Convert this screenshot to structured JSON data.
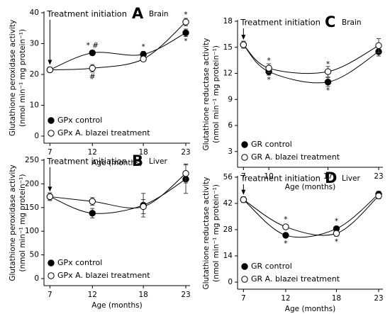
{
  "chart_data": [
    {
      "type": "line",
      "panel": "A",
      "title": "Brain",
      "annotation": "Treatment initiation",
      "ylabel": [
        "Glutathione peroxidase activity",
        "(nmol min⁻¹ mg protein⁻¹)"
      ],
      "xlabel": "Age (months)",
      "xlim": [
        6.3,
        23.5
      ],
      "xticks": [
        7,
        12,
        18,
        23
      ],
      "ylim": [
        0,
        40
      ],
      "yticks": [
        0,
        10,
        20,
        30,
        40
      ],
      "legend": "lower left",
      "series": [
        {
          "name": "GPx control",
          "marker": "filled",
          "color": "#000000",
          "x": [
            7,
            12,
            18,
            23
          ],
          "values": [
            21.5,
            27,
            26.5,
            33.5
          ],
          "errors": [
            0.8,
            0.8,
            1,
            1.2
          ]
        },
        {
          "name": "GPx A. blazei treatment",
          "marker": "open",
          "color": "#000000",
          "x": [
            7,
            12,
            18,
            23
          ],
          "values": [
            21.5,
            22,
            25,
            37
          ],
          "errors": [
            0.8,
            1.2,
            0.8,
            1.2
          ]
        }
      ],
      "annotations": [
        {
          "text": "* #",
          "x": 12,
          "y": 27,
          "position": "above"
        },
        {
          "text": "#",
          "x": 12,
          "y": 22,
          "position": "below"
        },
        {
          "text": "*",
          "x": 18,
          "y": 26.5,
          "position": "above"
        },
        {
          "text": "*",
          "x": 23,
          "y": 37,
          "position": "above"
        },
        {
          "text": "*",
          "x": 23,
          "y": 33.5,
          "position": "below"
        }
      ]
    },
    {
      "type": "line",
      "panel": "B",
      "title": "Liver",
      "annotation": "Treatment initiation",
      "ylabel": [
        "Glutathione peroxidase activity",
        "(nmol min⁻¹ mg protein⁻¹)"
      ],
      "xlabel": "Age (months)",
      "xlim": [
        6.3,
        23.5
      ],
      "xticks": [
        7,
        12,
        18,
        23
      ],
      "ylim": [
        0,
        250
      ],
      "yticks": [
        0,
        50,
        100,
        150,
        200,
        250
      ],
      "legend": "lower left",
      "series": [
        {
          "name": "GPx control",
          "marker": "filled",
          "color": "#000000",
          "x": [
            7,
            12,
            18,
            23
          ],
          "values": [
            173,
            138,
            155,
            210
          ],
          "errors": [
            8,
            10,
            25,
            30
          ]
        },
        {
          "name": "GPx A. blazei treatment",
          "marker": "open",
          "color": "#000000",
          "x": [
            7,
            12,
            18,
            23
          ],
          "values": [
            173,
            163,
            152,
            222
          ],
          "errors": [
            8,
            8,
            15,
            20
          ]
        }
      ],
      "annotations": []
    },
    {
      "type": "line",
      "panel": "C",
      "title": "Brain",
      "annotation": "Treatment initiation",
      "ylabel": [
        "Glutathione reductase activity",
        "(nmol min⁻¹ mg protein⁻¹)"
      ],
      "xlabel": "Age (months)",
      "xlim": [
        6.3,
        23.5
      ],
      "xticks": [
        7,
        10,
        17,
        23
      ],
      "ylim": [
        2,
        18
      ],
      "yticks": [
        3,
        6,
        9,
        12,
        15,
        18
      ],
      "legend": "lower left",
      "series": [
        {
          "name": "GR control",
          "marker": "filled",
          "color": "#000000",
          "x": [
            7,
            10,
            17,
            23
          ],
          "values": [
            15.3,
            12.2,
            11,
            14.5
          ],
          "errors": [
            0.4,
            0.4,
            0.5,
            0.5
          ]
        },
        {
          "name": "GR A. blazei treatment",
          "marker": "open",
          "color": "#000000",
          "x": [
            7,
            10,
            17,
            23
          ],
          "values": [
            15.3,
            12.6,
            12.2,
            15.2
          ],
          "errors": [
            0.4,
            0.5,
            0.6,
            0.8
          ]
        }
      ],
      "annotations": [
        {
          "text": "*",
          "x": 10,
          "y": 12.6,
          "position": "above"
        },
        {
          "text": "*",
          "x": 10,
          "y": 12.2,
          "position": "below"
        },
        {
          "text": "*",
          "x": 17,
          "y": 12.2,
          "position": "above"
        },
        {
          "text": "*",
          "x": 17,
          "y": 11,
          "position": "below"
        }
      ]
    },
    {
      "type": "line",
      "panel": "D",
      "title": "Liver",
      "annotation": "Treatment initiation",
      "ylabel": [
        "Glutathione  reductase activity",
        "(nmol min⁻¹ mg protein⁻¹)"
      ],
      "xlabel": "Age (months)",
      "xlim": [
        6.3,
        23.5
      ],
      "xticks": [
        7,
        12,
        18,
        23
      ],
      "ylim": [
        0,
        56
      ],
      "yticks": [
        0,
        14,
        28,
        42,
        56
      ],
      "legend": "lower left",
      "series": [
        {
          "name": "GR control",
          "marker": "filled",
          "color": "#000000",
          "x": [
            7,
            12,
            18,
            23
          ],
          "values": [
            44,
            25,
            28.5,
            47
          ],
          "errors": [
            1.5,
            1.2,
            1.2,
            1.5
          ]
        },
        {
          "name": "GR A. blazei treatment",
          "marker": "open",
          "color": "#000000",
          "x": [
            7,
            12,
            18,
            23
          ],
          "values": [
            44,
            29.5,
            26,
            46
          ],
          "errors": [
            1.5,
            1.2,
            1.5,
            1.5
          ]
        }
      ],
      "annotations": [
        {
          "text": "*",
          "x": 12,
          "y": 29.5,
          "position": "above"
        },
        {
          "text": "*",
          "x": 12,
          "y": 25,
          "position": "below"
        },
        {
          "text": "*",
          "x": 18,
          "y": 28.5,
          "position": "above"
        },
        {
          "text": "*",
          "x": 18,
          "y": 26,
          "position": "below"
        }
      ]
    }
  ]
}
